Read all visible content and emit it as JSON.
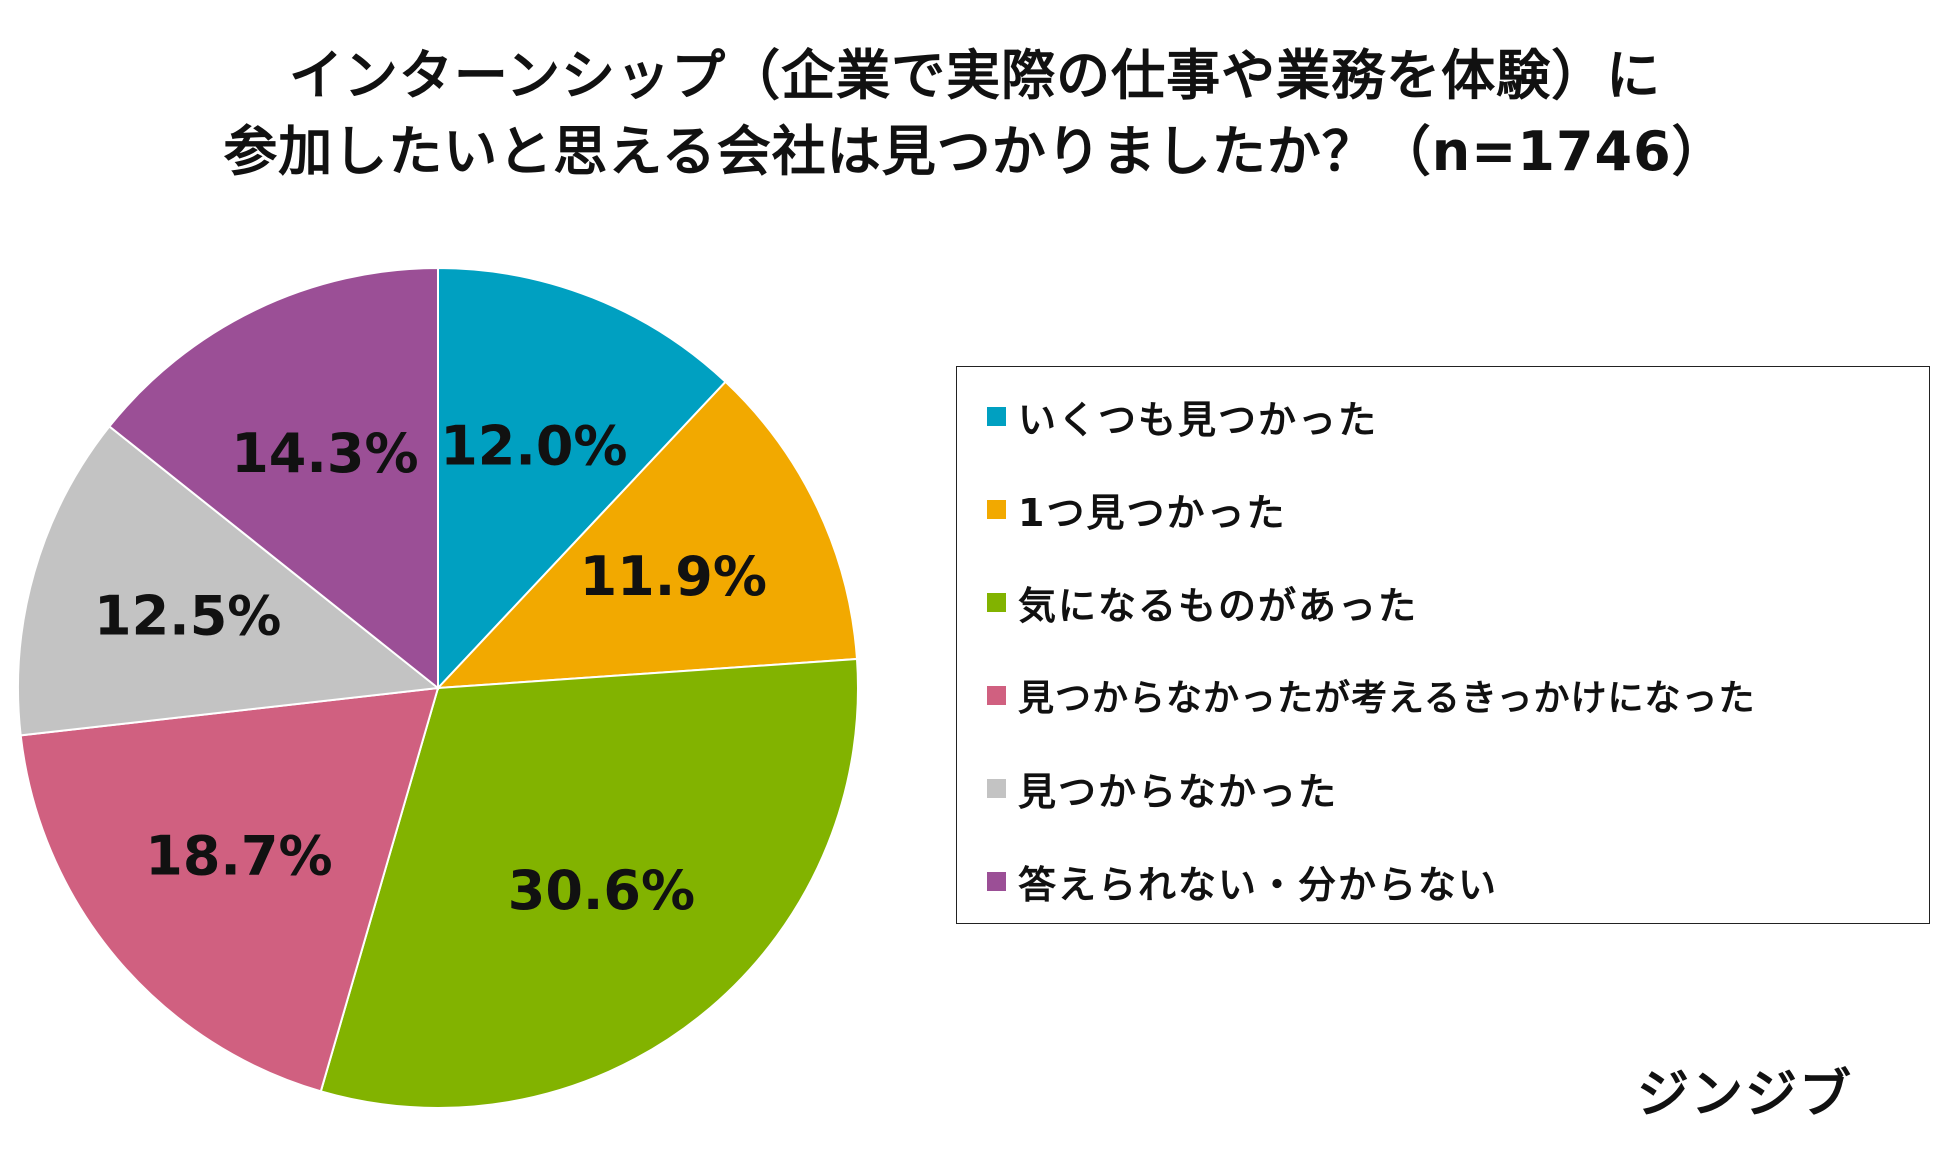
{
  "chart_data": {
    "type": "pie",
    "title_lines": [
      "インターンシップ（企業で実際の仕事や業務を体験）に",
      "参加したいと思える会社は見つかりましたか？（n=1746）"
    ],
    "slices": [
      {
        "label": "いくつも見つかった",
        "value": 12.0,
        "value_label": "12.0%",
        "color": "#00a0c1"
      },
      {
        "label": "1つ見つかった",
        "value": 11.9,
        "value_label": "11.9%",
        "color": "#f2a900"
      },
      {
        "label": "気になるものがあった",
        "value": 30.6,
        "value_label": "30.6%",
        "color": "#82b300"
      },
      {
        "label": "見つからなかったが考えるきっかけになった",
        "value": 18.7,
        "value_label": "18.7%",
        "color": "#d06080"
      },
      {
        "label": "見つからなかった",
        "value": 12.5,
        "value_label": "12.5%",
        "color": "#c3c3c3"
      },
      {
        "label": "答えられない・分からない",
        "value": 14.3,
        "value_label": "14.3%",
        "color": "#9b4f96"
      }
    ],
    "legend_position": "right"
  },
  "brand": "ジンジブ"
}
